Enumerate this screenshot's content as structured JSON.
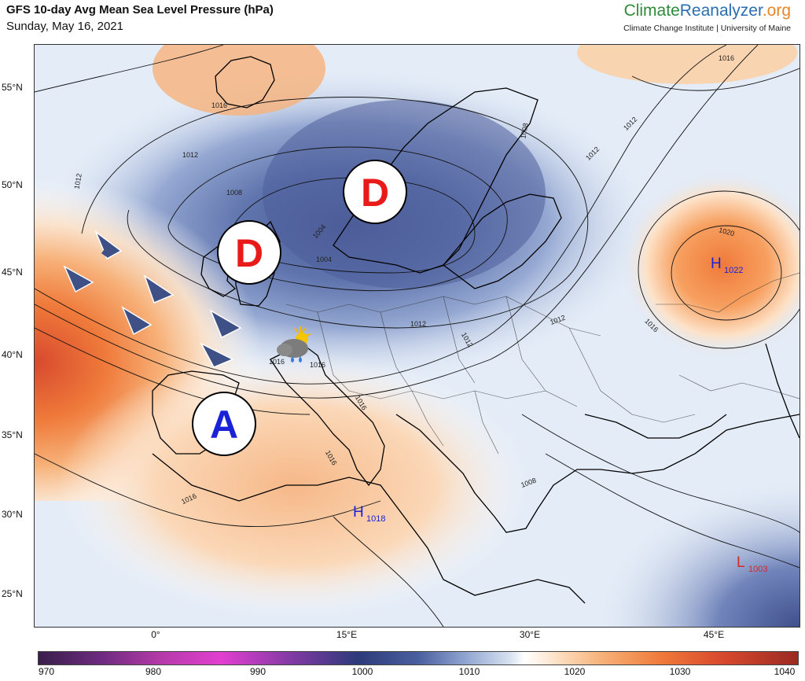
{
  "header": {
    "title": "GFS 10-day Avg Mean Sea Level Pressure (hPa)",
    "date": "Sunday, May 16, 2021"
  },
  "brand": {
    "part1": "Climate",
    "part2": "Reanalyzer",
    "part3": ".org",
    "institution": "Climate Change Institute | University of Maine",
    "colors": {
      "part1": "#2e8b3a",
      "part2": "#2a6db0",
      "part3": "#e8862a"
    }
  },
  "map": {
    "lat_labels": [
      "55°N",
      "50°N",
      "45°N",
      "40°N",
      "35°N",
      "30°N",
      "25°N"
    ],
    "lon_labels": [
      "0°",
      "15°E",
      "30°E",
      "45°E"
    ],
    "markers": {
      "d1": "D",
      "d2": "D",
      "a1": "A"
    },
    "centers": [
      {
        "letter": "H",
        "value": "1022",
        "color": "#1a22d8"
      },
      {
        "letter": "H",
        "value": "1018",
        "color": "#1a22d8"
      },
      {
        "letter": "L",
        "value": "1003",
        "color": "#d22a2a"
      }
    ],
    "contour_labels": [
      "1016",
      "1012",
      "1012",
      "1008",
      "1004",
      "1004",
      "1008",
      "1012",
      "1012",
      "1016",
      "1016",
      "1020",
      "1016",
      "1016",
      "1016",
      "1012",
      "1016",
      "1012",
      "1008",
      "1016",
      "1012"
    ],
    "weather_icon": "sun-cloud-rain-icon"
  },
  "colorbar": {
    "ticks": [
      "970",
      "980",
      "990",
      "1000",
      "1010",
      "1020",
      "1030",
      "1040"
    ]
  }
}
